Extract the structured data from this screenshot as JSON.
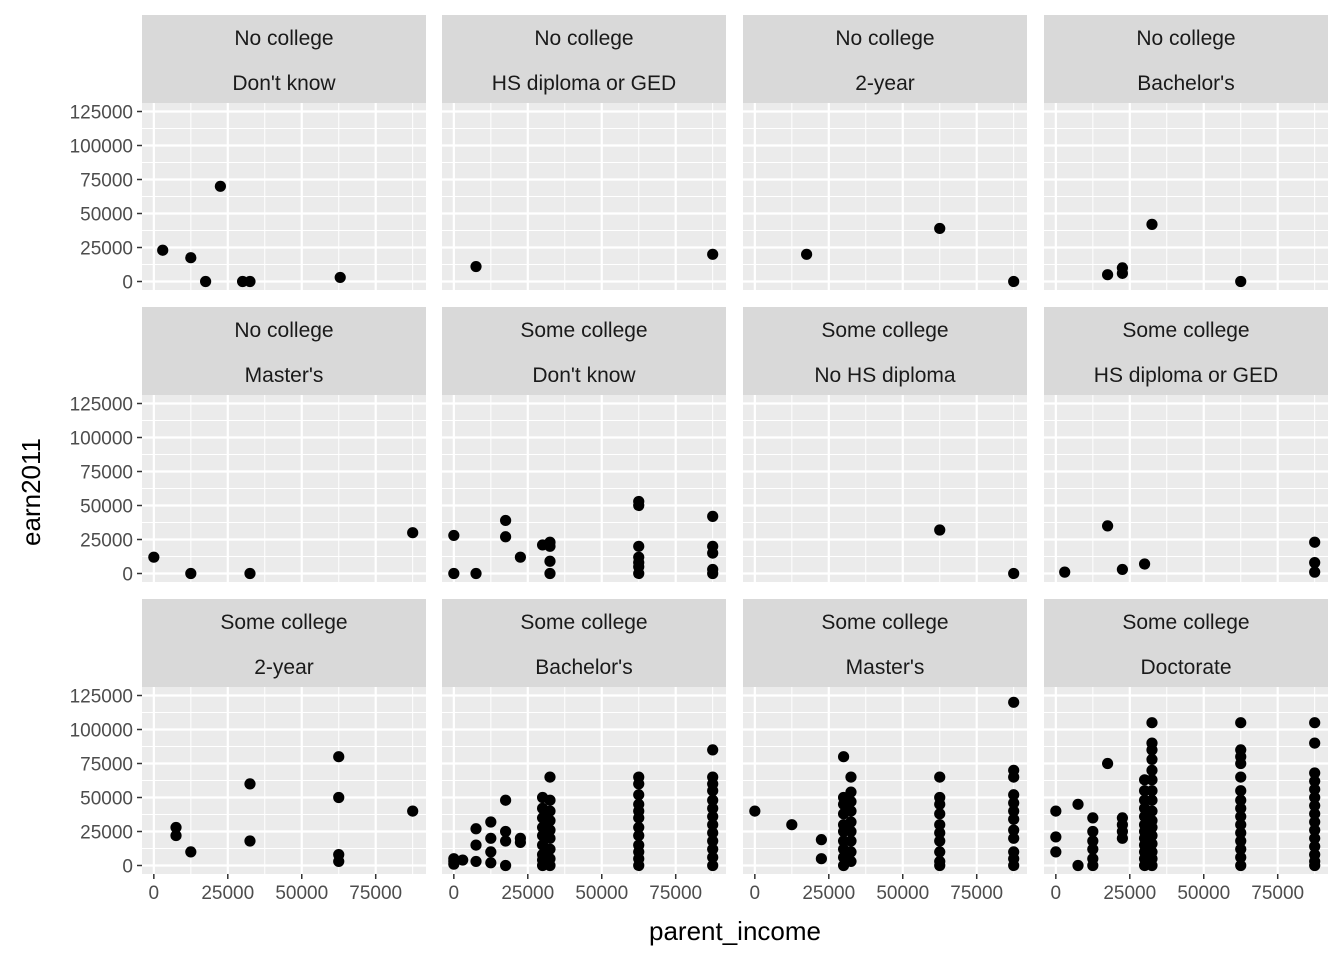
{
  "chart_data": {
    "type": "scatter",
    "xlabel": "parent_income",
    "ylabel": "earn2011",
    "xlim": [
      -4000,
      92000
    ],
    "ylim": [
      -6250,
      131250
    ],
    "x_ticks": [
      0,
      25000,
      50000,
      75000
    ],
    "x_tick_labels": [
      "0",
      "25000",
      "50000",
      "75000"
    ],
    "y_ticks": [
      0,
      25000,
      50000,
      75000,
      100000,
      125000
    ],
    "y_tick_labels": [
      "0",
      "25000",
      "50000",
      "75000",
      "100000",
      "125000"
    ],
    "grid": true,
    "legend": "none",
    "facet_rows": 3,
    "facet_cols": 4,
    "panels": [
      {
        "strip": [
          "No college",
          "Don't know"
        ],
        "points": [
          [
            3000,
            23000
          ],
          [
            12500,
            17500
          ],
          [
            17500,
            0
          ],
          [
            22500,
            70000
          ],
          [
            30000,
            0
          ],
          [
            32500,
            0
          ],
          [
            63000,
            3000
          ]
        ]
      },
      {
        "strip": [
          "No college",
          "HS diploma or GED"
        ],
        "points": [
          [
            7500,
            11000
          ],
          [
            87500,
            20000
          ]
        ]
      },
      {
        "strip": [
          "No college",
          "2-year"
        ],
        "points": [
          [
            17500,
            20000
          ],
          [
            62500,
            39000
          ],
          [
            87500,
            0
          ]
        ]
      },
      {
        "strip": [
          "No college",
          "Bachelor's"
        ],
        "points": [
          [
            17500,
            5000
          ],
          [
            22500,
            6000
          ],
          [
            22500,
            10000
          ],
          [
            32500,
            42000
          ],
          [
            62500,
            0
          ]
        ]
      },
      {
        "strip": [
          "No college",
          "Master's"
        ],
        "points": [
          [
            0,
            12000
          ],
          [
            12500,
            0
          ],
          [
            32500,
            0
          ],
          [
            87500,
            30000
          ]
        ]
      },
      {
        "strip": [
          "Some college",
          "Don't know"
        ],
        "points": [
          [
            0,
            28000
          ],
          [
            0,
            0
          ],
          [
            7500,
            0
          ],
          [
            17500,
            39000
          ],
          [
            17500,
            27000
          ],
          [
            22500,
            12000
          ],
          [
            30000,
            21000
          ],
          [
            32500,
            23000
          ],
          [
            32500,
            20000
          ],
          [
            32500,
            9000
          ],
          [
            32500,
            0
          ],
          [
            62500,
            53000
          ],
          [
            62500,
            50000
          ],
          [
            62500,
            20000
          ],
          [
            62500,
            12000
          ],
          [
            62500,
            8000
          ],
          [
            62500,
            5000
          ],
          [
            62500,
            0
          ],
          [
            87500,
            42000
          ],
          [
            87500,
            20000
          ],
          [
            87500,
            15000
          ],
          [
            87500,
            3000
          ],
          [
            87500,
            0
          ]
        ]
      },
      {
        "strip": [
          "Some college",
          "No HS diploma"
        ],
        "points": [
          [
            62500,
            32000
          ],
          [
            87500,
            0
          ]
        ]
      },
      {
        "strip": [
          "Some college",
          "HS diploma or GED"
        ],
        "points": [
          [
            3000,
            1000
          ],
          [
            17500,
            35000
          ],
          [
            22500,
            3000
          ],
          [
            30000,
            7000
          ],
          [
            87500,
            23000
          ],
          [
            87500,
            8000
          ],
          [
            87500,
            1000
          ]
        ]
      },
      {
        "strip": [
          "Some college",
          "2-year"
        ],
        "points": [
          [
            7500,
            28000
          ],
          [
            7500,
            22000
          ],
          [
            12500,
            10000
          ],
          [
            32500,
            60000
          ],
          [
            32500,
            18000
          ],
          [
            62500,
            80000
          ],
          [
            62500,
            50000
          ],
          [
            62500,
            8000
          ],
          [
            62500,
            3000
          ],
          [
            87500,
            40000
          ]
        ]
      },
      {
        "strip": [
          "Some college",
          "Bachelor's"
        ],
        "points": [
          [
            0,
            5000
          ],
          [
            0,
            3000
          ],
          [
            0,
            1000
          ],
          [
            3000,
            4000
          ],
          [
            7500,
            27000
          ],
          [
            7500,
            15000
          ],
          [
            7500,
            3000
          ],
          [
            12500,
            32000
          ],
          [
            12500,
            20000
          ],
          [
            12500,
            10000
          ],
          [
            12500,
            2000
          ],
          [
            17500,
            48000
          ],
          [
            17500,
            25000
          ],
          [
            17500,
            18000
          ],
          [
            17500,
            0
          ],
          [
            22500,
            20000
          ],
          [
            22500,
            17000
          ],
          [
            30000,
            50000
          ],
          [
            30000,
            42000
          ],
          [
            30000,
            35000
          ],
          [
            30000,
            28000
          ],
          [
            30000,
            22000
          ],
          [
            30000,
            15000
          ],
          [
            30000,
            8000
          ],
          [
            30000,
            4000
          ],
          [
            30000,
            0
          ],
          [
            32500,
            65000
          ],
          [
            32500,
            48000
          ],
          [
            32500,
            40000
          ],
          [
            32500,
            33000
          ],
          [
            32500,
            26000
          ],
          [
            32500,
            20000
          ],
          [
            32500,
            12000
          ],
          [
            32500,
            5000
          ],
          [
            32500,
            0
          ],
          [
            62500,
            65000
          ],
          [
            62500,
            60000
          ],
          [
            62500,
            52000
          ],
          [
            62500,
            45000
          ],
          [
            62500,
            40000
          ],
          [
            62500,
            35000
          ],
          [
            62500,
            28000
          ],
          [
            62500,
            22000
          ],
          [
            62500,
            15000
          ],
          [
            62500,
            10000
          ],
          [
            62500,
            5000
          ],
          [
            62500,
            0
          ],
          [
            87500,
            85000
          ],
          [
            87500,
            65000
          ],
          [
            87500,
            60000
          ],
          [
            87500,
            55000
          ],
          [
            87500,
            48000
          ],
          [
            87500,
            42000
          ],
          [
            87500,
            36000
          ],
          [
            87500,
            30000
          ],
          [
            87500,
            24000
          ],
          [
            87500,
            18000
          ],
          [
            87500,
            12000
          ],
          [
            87500,
            6000
          ],
          [
            87500,
            0
          ]
        ]
      },
      {
        "strip": [
          "Some college",
          "Master's"
        ],
        "points": [
          [
            0,
            40000
          ],
          [
            12500,
            30000
          ],
          [
            22500,
            19000
          ],
          [
            22500,
            5000
          ],
          [
            30000,
            80000
          ],
          [
            30000,
            50000
          ],
          [
            30000,
            45000
          ],
          [
            30000,
            38000
          ],
          [
            30000,
            30000
          ],
          [
            30000,
            25000
          ],
          [
            30000,
            18000
          ],
          [
            30000,
            12000
          ],
          [
            30000,
            6000
          ],
          [
            30000,
            0
          ],
          [
            32500,
            65000
          ],
          [
            32500,
            54000
          ],
          [
            32500,
            47000
          ],
          [
            32500,
            40000
          ],
          [
            32500,
            32000
          ],
          [
            32500,
            25000
          ],
          [
            32500,
            18000
          ],
          [
            32500,
            10000
          ],
          [
            32500,
            3000
          ],
          [
            62500,
            65000
          ],
          [
            62500,
            50000
          ],
          [
            62500,
            45000
          ],
          [
            62500,
            38000
          ],
          [
            62500,
            30000
          ],
          [
            62500,
            24000
          ],
          [
            62500,
            18000
          ],
          [
            62500,
            10000
          ],
          [
            62500,
            3000
          ],
          [
            62500,
            0
          ],
          [
            87500,
            120000
          ],
          [
            87500,
            70000
          ],
          [
            87500,
            65000
          ],
          [
            87500,
            52000
          ],
          [
            87500,
            46000
          ],
          [
            87500,
            40000
          ],
          [
            87500,
            34000
          ],
          [
            87500,
            26000
          ],
          [
            87500,
            20000
          ],
          [
            87500,
            10000
          ],
          [
            87500,
            5000
          ],
          [
            87500,
            0
          ]
        ]
      },
      {
        "strip": [
          "Some college",
          "Doctorate"
        ],
        "points": [
          [
            0,
            40000
          ],
          [
            0,
            21000
          ],
          [
            0,
            10000
          ],
          [
            7500,
            45000
          ],
          [
            7500,
            0
          ],
          [
            12500,
            35000
          ],
          [
            12500,
            25000
          ],
          [
            12500,
            18000
          ],
          [
            12500,
            12000
          ],
          [
            12500,
            5000
          ],
          [
            12500,
            0
          ],
          [
            17500,
            75000
          ],
          [
            22500,
            35000
          ],
          [
            22500,
            30000
          ],
          [
            22500,
            25000
          ],
          [
            22500,
            20000
          ],
          [
            30000,
            63000
          ],
          [
            30000,
            55000
          ],
          [
            30000,
            48000
          ],
          [
            30000,
            42000
          ],
          [
            30000,
            36000
          ],
          [
            30000,
            30000
          ],
          [
            30000,
            25000
          ],
          [
            30000,
            20000
          ],
          [
            30000,
            15000
          ],
          [
            30000,
            10000
          ],
          [
            30000,
            5000
          ],
          [
            30000,
            0
          ],
          [
            32500,
            105000
          ],
          [
            32500,
            90000
          ],
          [
            32500,
            85000
          ],
          [
            32500,
            78000
          ],
          [
            32500,
            70000
          ],
          [
            32500,
            63000
          ],
          [
            32500,
            55000
          ],
          [
            32500,
            48000
          ],
          [
            32500,
            40000
          ],
          [
            32500,
            33000
          ],
          [
            32500,
            28000
          ],
          [
            32500,
            22000
          ],
          [
            32500,
            16000
          ],
          [
            32500,
            10000
          ],
          [
            32500,
            5000
          ],
          [
            32500,
            0
          ],
          [
            62500,
            105000
          ],
          [
            62500,
            85000
          ],
          [
            62500,
            80000
          ],
          [
            62500,
            75000
          ],
          [
            62500,
            65000
          ],
          [
            62500,
            55000
          ],
          [
            62500,
            48000
          ],
          [
            62500,
            42000
          ],
          [
            62500,
            36000
          ],
          [
            62500,
            30000
          ],
          [
            62500,
            24000
          ],
          [
            62500,
            18000
          ],
          [
            62500,
            12000
          ],
          [
            62500,
            6000
          ],
          [
            62500,
            0
          ],
          [
            87500,
            105000
          ],
          [
            87500,
            90000
          ],
          [
            87500,
            68000
          ],
          [
            87500,
            62000
          ],
          [
            87500,
            56000
          ],
          [
            87500,
            50000
          ],
          [
            87500,
            44000
          ],
          [
            87500,
            38000
          ],
          [
            87500,
            32000
          ],
          [
            87500,
            26000
          ],
          [
            87500,
            20000
          ],
          [
            87500,
            14000
          ],
          [
            87500,
            8000
          ],
          [
            87500,
            3000
          ],
          [
            87500,
            0
          ]
        ]
      }
    ]
  }
}
